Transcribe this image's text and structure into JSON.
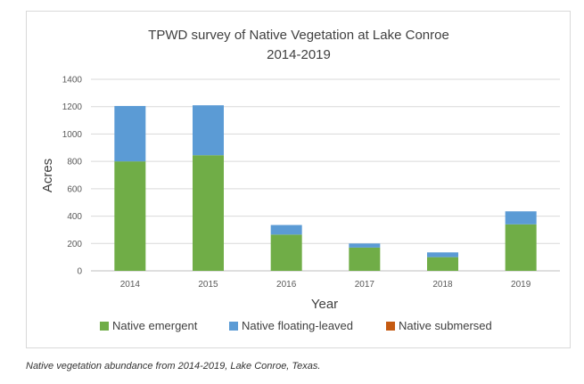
{
  "chart_data": {
    "type": "bar",
    "stacked": true,
    "title_line1": "TPWD survey of Native Vegetation at Lake Conroe",
    "title_line2": "2014-2019",
    "xlabel": "Year",
    "ylabel": "Acres",
    "ylim": [
      0,
      1400
    ],
    "yticks": [
      "0",
      "200",
      "400",
      "600",
      "800",
      "1000",
      "1200",
      "1400"
    ],
    "categories": [
      "2014",
      "2015",
      "2016",
      "2017",
      "2018",
      "2019"
    ],
    "grid": true,
    "legend_position": "bottom",
    "series": [
      {
        "name": "Native emergent",
        "color": "#70ad47",
        "values": [
          800,
          845,
          265,
          170,
          100,
          340
        ]
      },
      {
        "name": "Native floating-leaved",
        "color": "#5b9bd5",
        "values": [
          405,
          365,
          70,
          30,
          35,
          95
        ]
      },
      {
        "name": "Native submersed",
        "color": "#c55a11",
        "values": [
          0,
          0,
          0,
          0,
          0,
          0
        ]
      }
    ]
  },
  "caption": "Native vegetation abundance from 2014-2019, Lake Conroe, Texas."
}
